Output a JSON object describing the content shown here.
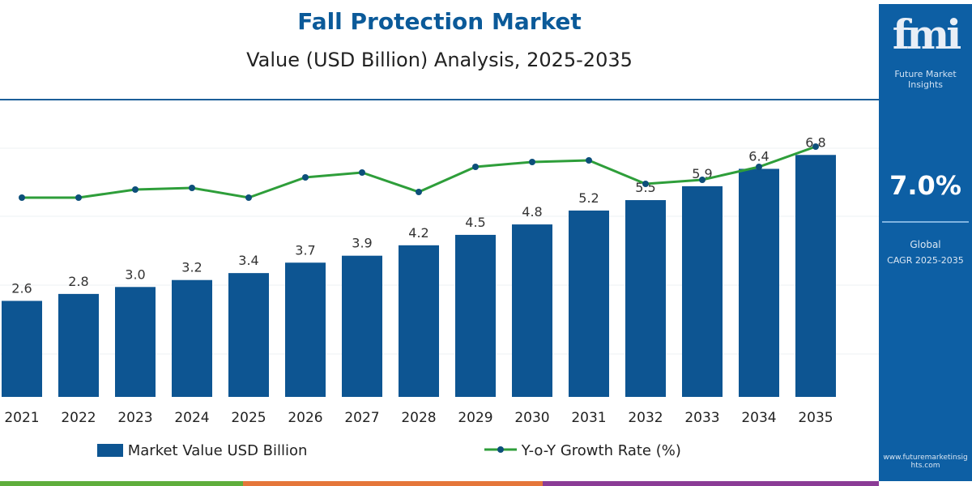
{
  "chart_data": {
    "type": "bar+line",
    "title": "Fall Protection Market",
    "subtitle": "Value (USD Billion) Analysis, 2025-2035",
    "categories": [
      "2021",
      "2022",
      "2023",
      "2024",
      "2025",
      "2026",
      "2027",
      "2028",
      "2029",
      "2030",
      "2031",
      "2032",
      "2033",
      "2034",
      "2035"
    ],
    "series": [
      {
        "name": "Market Value USD Billion",
        "type": "bar",
        "color": "#0d5592",
        "values": [
          2.6,
          2.8,
          3.0,
          3.2,
          3.4,
          3.7,
          3.9,
          4.2,
          4.5,
          4.8,
          5.2,
          5.5,
          5.9,
          6.4,
          6.8
        ]
      },
      {
        "name": "Y-o-Y Growth Rate (%)",
        "type": "line",
        "color": "#2e9e3a",
        "marker_color": "#0d4f7a",
        "values": [
          5.6,
          5.6,
          6.6,
          6.8,
          5.6,
          8.1,
          8.7,
          6.3,
          9.4,
          10.0,
          10.2,
          7.3,
          7.8,
          9.4,
          11.9
        ]
      }
    ],
    "legend": "bottom",
    "grid": true
  },
  "side": {
    "logo": "fmi",
    "brand": "Future Market Insights",
    "cagr": "7.0%",
    "label1": "Global",
    "label2": "CAGR 2025-2035",
    "url": "www.futuremarketinsights.com"
  },
  "colors": {
    "stripe": [
      "#5fae3c",
      "#e5763a",
      "#8b3c96"
    ]
  }
}
